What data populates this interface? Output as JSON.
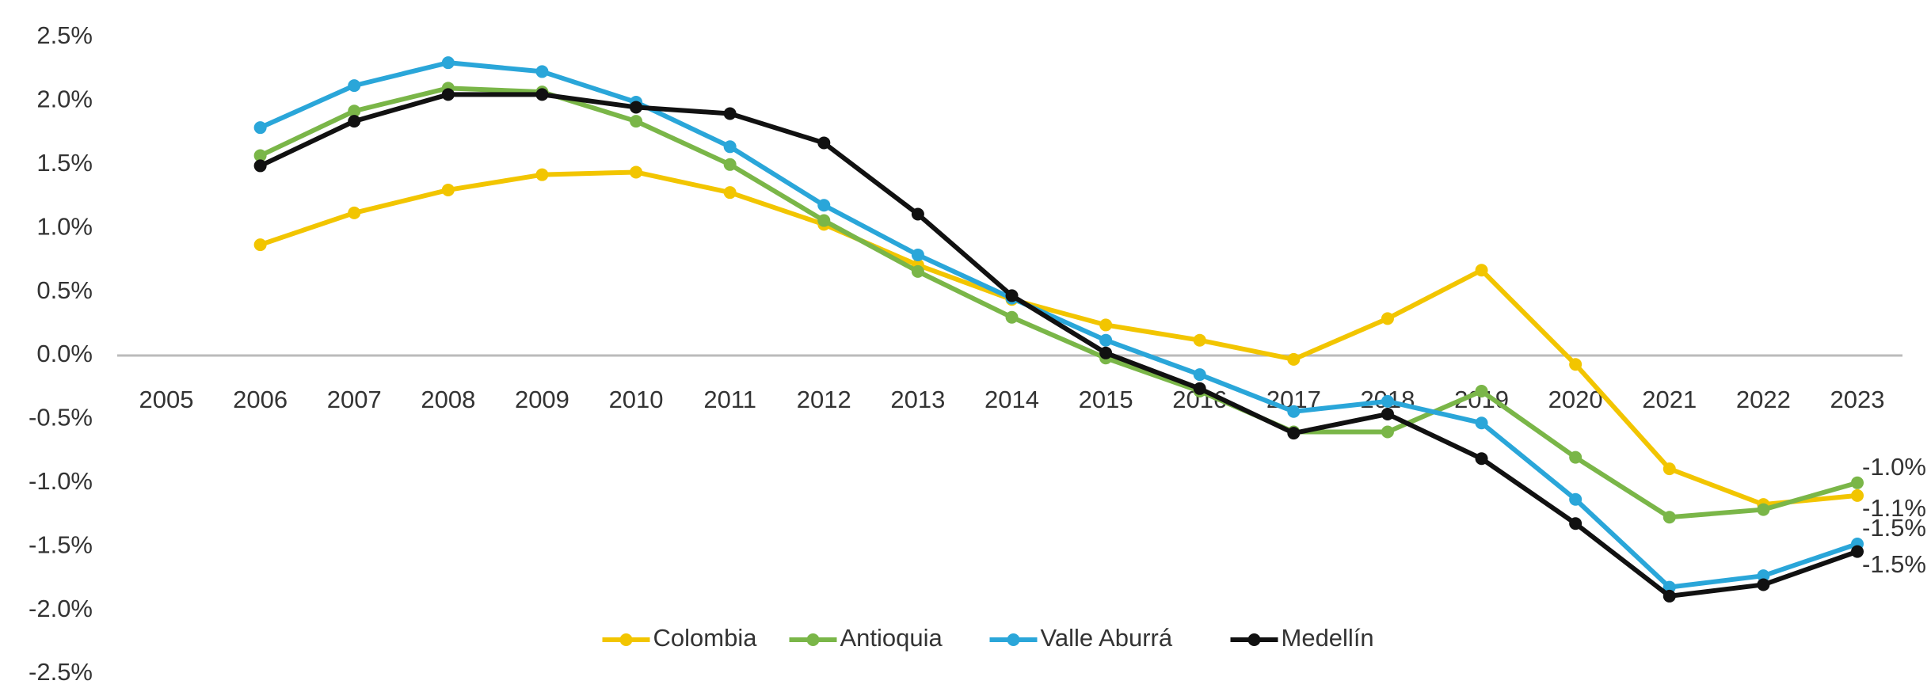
{
  "chart_data": {
    "type": "line",
    "categories": [
      "2005",
      "2006",
      "2007",
      "2008",
      "2009",
      "2010",
      "2011",
      "2012",
      "2013",
      "2014",
      "2015",
      "2016",
      "2017",
      "2018",
      "2019",
      "2020",
      "2021",
      "2022",
      "2023"
    ],
    "series": [
      {
        "name": "Colombia",
        "color": "#f2c500",
        "values": [
          null,
          0.87,
          1.12,
          1.3,
          1.42,
          1.44,
          1.28,
          1.03,
          0.71,
          0.44,
          0.24,
          0.12,
          -0.03,
          0.29,
          0.67,
          -0.07,
          -0.89,
          -1.17,
          -1.1
        ],
        "value_labels": [
          null,
          null,
          null,
          null,
          null,
          null,
          null,
          null,
          null,
          null,
          null,
          null,
          null,
          null,
          null,
          null,
          null,
          null,
          "-1.1%"
        ]
      },
      {
        "name": "Antioquia",
        "color": "#7ab648",
        "values": [
          null,
          1.57,
          1.92,
          2.1,
          2.07,
          1.84,
          1.5,
          1.06,
          0.66,
          0.3,
          -0.02,
          -0.28,
          -0.6,
          -0.6,
          -0.28,
          -0.8,
          -1.27,
          -1.21,
          -1.0
        ],
        "value_labels": [
          null,
          null,
          null,
          null,
          null,
          null,
          null,
          null,
          null,
          null,
          null,
          null,
          null,
          null,
          null,
          null,
          null,
          null,
          "-1.0%"
        ]
      },
      {
        "name": "Valle Aburrá",
        "color": "#2aa6d9",
        "values": [
          null,
          1.79,
          2.12,
          2.3,
          2.23,
          1.99,
          1.64,
          1.18,
          0.79,
          0.45,
          0.12,
          -0.15,
          -0.44,
          -0.36,
          -0.53,
          -1.13,
          -1.82,
          -1.73,
          -1.48
        ],
        "value_labels": [
          null,
          null,
          null,
          null,
          null,
          null,
          null,
          null,
          null,
          null,
          null,
          null,
          null,
          null,
          null,
          null,
          null,
          null,
          "-1.5%"
        ]
      },
      {
        "name": "Medellín",
        "color": "#111111",
        "values": [
          null,
          1.49,
          1.84,
          2.05,
          2.05,
          1.95,
          1.9,
          1.67,
          1.11,
          0.47,
          0.02,
          -0.26,
          -0.61,
          -0.46,
          -0.81,
          -1.32,
          -1.89,
          -1.8,
          -1.54
        ],
        "value_labels": [
          null,
          null,
          null,
          null,
          null,
          null,
          null,
          null,
          null,
          null,
          null,
          null,
          null,
          null,
          null,
          null,
          null,
          null,
          "-1.5%"
        ]
      }
    ],
    "ylim": [
      -2.5,
      2.5
    ],
    "yticks": [
      {
        "value": 2.5,
        "label": "2.5%"
      },
      {
        "value": 2.0,
        "label": "2.0%"
      },
      {
        "value": 1.5,
        "label": "1.5%"
      },
      {
        "value": 1.0,
        "label": "1.0%"
      },
      {
        "value": 0.5,
        "label": "0.5%"
      },
      {
        "value": 0.0,
        "label": "0.0%"
      },
      {
        "value": -0.5,
        "label": "-0.5%"
      },
      {
        "value": -1.0,
        "label": "-1.0%"
      },
      {
        "value": -1.5,
        "label": "-1.5%"
      },
      {
        "value": -2.0,
        "label": "-2.0%"
      },
      {
        "value": -2.5,
        "label": "-2.5%"
      }
    ],
    "legend": "bottom"
  }
}
